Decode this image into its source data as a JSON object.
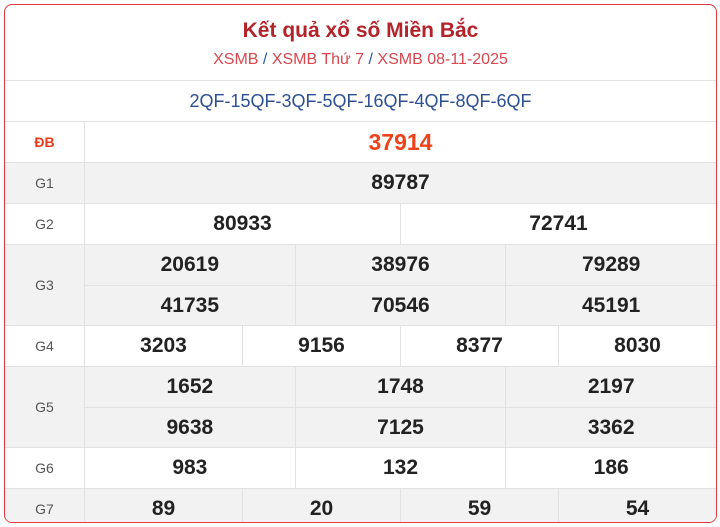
{
  "header": {
    "title": "Kết quả xổ số Miền Bắc",
    "breadcrumbs": [
      "XSMB",
      "XSMB Thứ 7",
      "XSMB 08-11-2025"
    ],
    "separator": "/"
  },
  "codes": "2QF-15QF-3QF-5QF-16QF-4QF-8QF-6QF",
  "colors": {
    "border": "#e8343c",
    "title": "#b3242a",
    "special": "#f0421a",
    "codes": "#2d4f93"
  },
  "prizes": [
    {
      "label": "ĐB",
      "rows": [
        [
          "37914"
        ]
      ]
    },
    {
      "label": "G1",
      "rows": [
        [
          "89787"
        ]
      ]
    },
    {
      "label": "G2",
      "rows": [
        [
          "80933",
          "72741"
        ]
      ]
    },
    {
      "label": "G3",
      "rows": [
        [
          "20619",
          "38976",
          "79289"
        ],
        [
          "41735",
          "70546",
          "45191"
        ]
      ]
    },
    {
      "label": "G4",
      "rows": [
        [
          "3203",
          "9156",
          "8377",
          "8030"
        ]
      ]
    },
    {
      "label": "G5",
      "rows": [
        [
          "1652",
          "1748",
          "2197"
        ],
        [
          "9638",
          "7125",
          "3362"
        ]
      ]
    },
    {
      "label": "G6",
      "rows": [
        [
          "983",
          "132",
          "186"
        ]
      ]
    },
    {
      "label": "G7",
      "rows": [
        [
          "89",
          "20",
          "59",
          "54"
        ]
      ]
    }
  ]
}
